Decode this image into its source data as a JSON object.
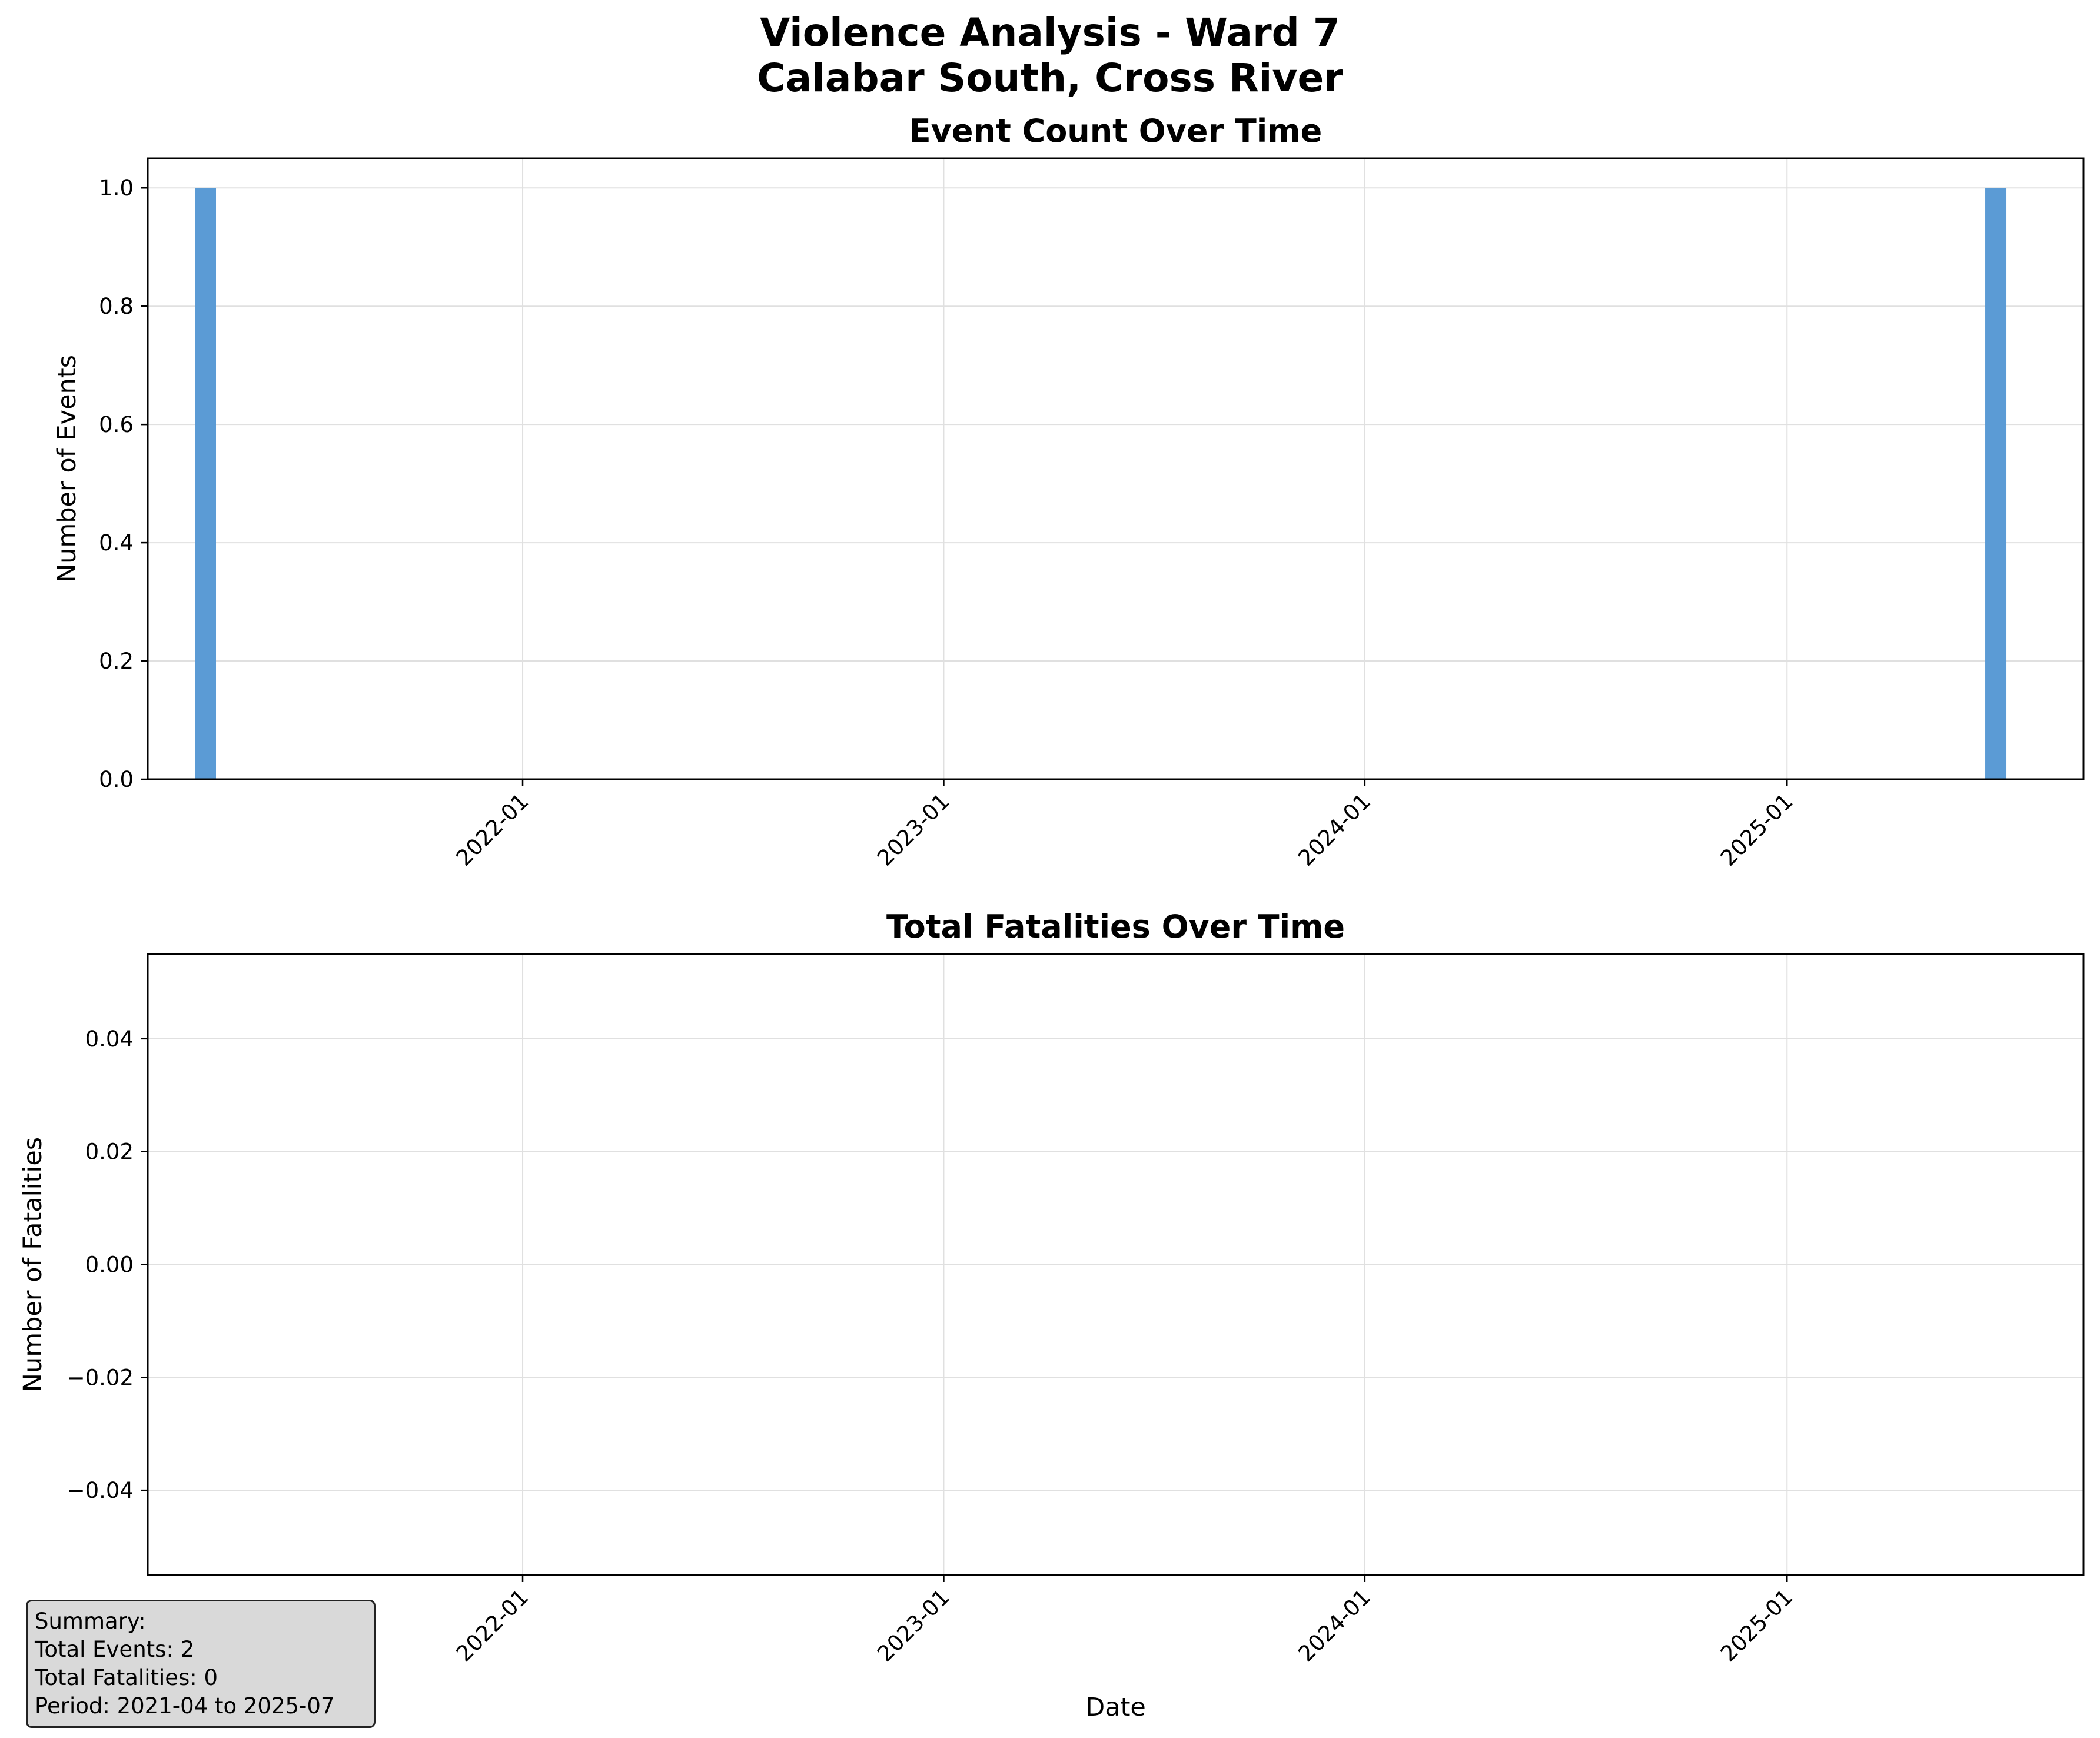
{
  "figure": {
    "title_line1": "Violence Analysis - Ward 7",
    "title_line2": "Calabar South, Cross River"
  },
  "colors": {
    "bar": "#5b9bd5",
    "grid": "#e0e0e0",
    "axes": "#000000",
    "summary_bg": "#d9d9d9"
  },
  "chart_data": [
    {
      "type": "bar",
      "title": "Event Count Over Time",
      "xlabel": "",
      "ylabel": "Number of Events",
      "x": [
        "2021-04",
        "2025-07"
      ],
      "values": [
        1,
        1
      ],
      "xlim": [
        "2021-02-10",
        "2025-09-15"
      ],
      "ylim": [
        0,
        1.05
      ],
      "x_ticks": [
        "2022-01",
        "2023-01",
        "2024-01",
        "2025-01"
      ],
      "y_ticks": [
        "0.0",
        "0.2",
        "0.4",
        "0.6",
        "0.8",
        "1.0"
      ],
      "grid": true
    },
    {
      "type": "line",
      "title": "Total Fatalities Over Time",
      "xlabel": "Date",
      "ylabel": "Number of Fatalities",
      "x": [],
      "values": [],
      "xlim": [
        "2021-02-10",
        "2025-09-15"
      ],
      "ylim": [
        -0.055,
        0.055
      ],
      "x_ticks": [
        "2022-01",
        "2023-01",
        "2024-01",
        "2025-01"
      ],
      "y_ticks": [
        "−0.04",
        "−0.02",
        "0.00",
        "0.02",
        "0.04"
      ],
      "grid": true
    }
  ],
  "summary": {
    "heading": "Summary:",
    "events": "Total Events: 2",
    "fatalities": "Total Fatalities: 0",
    "period": "Period: 2021-04 to 2025-07"
  }
}
